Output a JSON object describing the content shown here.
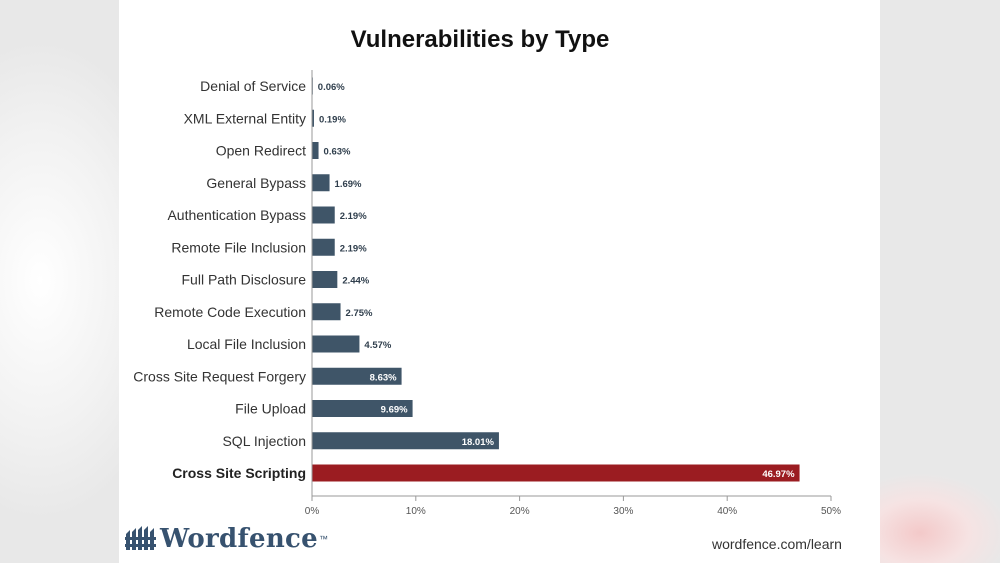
{
  "chart_data": {
    "type": "bar",
    "orientation": "horizontal",
    "title": "Vulnerabilities by Type",
    "categories": [
      "Denial of Service",
      "XML External Entity",
      "Open Redirect",
      "General Bypass",
      "Authentication Bypass",
      "Remote File Inclusion",
      "Full Path Disclosure",
      "Remote Code Execution",
      "Local File Inclusion",
      "Cross Site Request Forgery",
      "File Upload",
      "SQL Injection",
      "Cross Site Scripting"
    ],
    "values": [
      0.06,
      0.19,
      0.63,
      1.69,
      2.19,
      2.19,
      2.44,
      2.75,
      4.57,
      8.63,
      9.69,
      18.01,
      46.97
    ],
    "value_labels": [
      "0.06%",
      "0.19%",
      "0.63%",
      "1.69%",
      "2.19%",
      "2.19%",
      "2.44%",
      "2.75%",
      "4.57%",
      "8.63%",
      "9.69%",
      "18.01%",
      "46.97%"
    ],
    "highlight": "Cross Site Scripting",
    "xlim": [
      0,
      50
    ],
    "xticks": [
      0,
      10,
      20,
      30,
      40,
      50
    ],
    "xtick_labels": [
      "0%",
      "10%",
      "20%",
      "30%",
      "40%",
      "50%"
    ],
    "xlabel": "",
    "ylabel": "",
    "grid": false,
    "colors": {
      "bar": "#3f5568",
      "highlight": "#9b1c21"
    }
  },
  "branding": {
    "logo_text": "Wordfence",
    "logo_tm": "™",
    "logo_icon": "wordfence-fence-icon",
    "url": "wordfence.com/learn"
  }
}
